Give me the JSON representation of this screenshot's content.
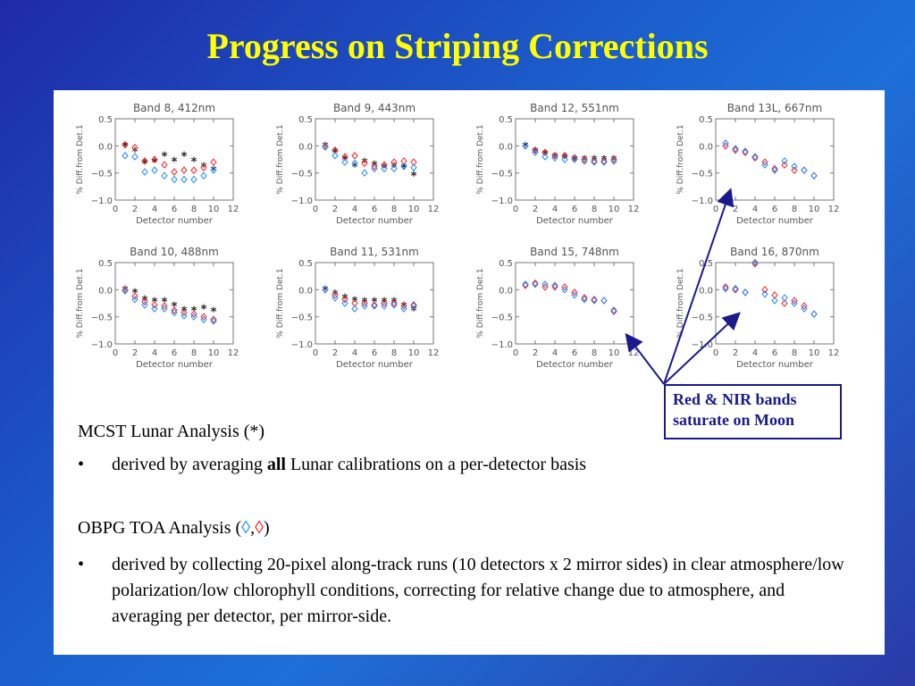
{
  "slide": {
    "title": "Progress on Striping Corrections",
    "callout_line1": "Red & NIR bands",
    "callout_line2": "saturate on Moon",
    "mcst_heading_prefix": "MCST Lunar Analysis (",
    "mcst_heading_symbol": "*",
    "mcst_heading_suffix": ")",
    "bullet_char": "•",
    "bullet1_prefix": "derived by averaging ",
    "bullet1_bold": "all",
    "bullet1_suffix": " Lunar calibrations on a per-detector basis",
    "obpg_heading_prefix": "OBPG TOA Analysis (",
    "obpg_blue_symbol": "◊",
    "obpg_separator": ",",
    "obpg_red_symbol": "◊",
    "obpg_heading_suffix": ")",
    "bullet2_text": "derived by collecting 20-pixel along-track runs (10 detectors x 2 mirror sides) in clear atmosphere/low polarization/low chlorophyll conditions, correcting for relative change due to atmosphere, and averaging per detector, per mirror-side."
  },
  "colors": {
    "title": "#ffff00",
    "blue_marker": "#1b8cff",
    "red_marker": "#ff2020",
    "star_marker": "#222222",
    "arrow": "#1a1a8c"
  },
  "chart_data": [
    {
      "type": "scatter",
      "title": "Band 8, 412nm",
      "xlabel": "Detector number",
      "ylabel": "% Diff.from Det.1",
      "xlim": [
        0,
        12
      ],
      "ylim": [
        -1.0,
        0.5
      ],
      "xticks": [
        "0",
        "2",
        "4",
        "6",
        "8",
        "10",
        "12"
      ],
      "yticks": [
        "0.5",
        "0.0",
        "−0.5",
        "−1.0"
      ],
      "series": [
        {
          "marker": "star",
          "x": [
            1,
            2,
            3,
            4,
            5,
            6,
            7,
            8,
            9,
            10
          ],
          "y": [
            0.0,
            -0.1,
            -0.32,
            -0.3,
            -0.18,
            -0.28,
            -0.18,
            -0.28,
            -0.38,
            -0.45
          ]
        },
        {
          "marker": "diamond-red",
          "x": [
            1,
            2,
            3,
            4,
            5,
            6,
            7,
            8,
            9,
            10
          ],
          "y": [
            0.02,
            -0.03,
            -0.28,
            -0.25,
            -0.35,
            -0.48,
            -0.45,
            -0.45,
            -0.4,
            -0.3
          ]
        },
        {
          "marker": "diamond-blue",
          "x": [
            1,
            2,
            3,
            4,
            5,
            6,
            7,
            8,
            9,
            10
          ],
          "y": [
            -0.18,
            -0.2,
            -0.48,
            -0.45,
            -0.55,
            -0.62,
            -0.62,
            -0.62,
            -0.55,
            -0.45
          ]
        }
      ]
    },
    {
      "type": "scatter",
      "title": "Band 9, 443nm",
      "xlabel": "Detector number",
      "ylabel": "% Diff.from Det.1",
      "xlim": [
        0,
        12
      ],
      "ylim": [
        -1.0,
        0.5
      ],
      "xticks": [
        "0",
        "2",
        "4",
        "6",
        "8",
        "10",
        "12"
      ],
      "yticks": [
        "0.5",
        "0.0",
        "−0.5",
        "−1.0"
      ],
      "series": [
        {
          "marker": "star",
          "x": [
            1,
            2,
            3,
            4,
            5,
            6,
            7,
            8,
            9,
            10
          ],
          "y": [
            0.0,
            -0.12,
            -0.25,
            -0.38,
            -0.3,
            -0.35,
            -0.4,
            -0.38,
            -0.4,
            -0.55
          ]
        },
        {
          "marker": "diamond-red",
          "x": [
            1,
            2,
            3,
            4,
            5,
            6,
            7,
            8,
            9,
            10
          ],
          "y": [
            0.0,
            -0.08,
            -0.2,
            -0.18,
            -0.32,
            -0.38,
            -0.35,
            -0.3,
            -0.28,
            -0.3
          ]
        },
        {
          "marker": "diamond-blue",
          "x": [
            1,
            2,
            3,
            4,
            5,
            6,
            7,
            8,
            9,
            10
          ],
          "y": [
            -0.02,
            -0.18,
            -0.3,
            -0.32,
            -0.5,
            -0.42,
            -0.42,
            -0.42,
            -0.38,
            -0.4
          ]
        }
      ]
    },
    {
      "type": "scatter",
      "title": "Band 12, 551nm",
      "xlabel": "Detector number",
      "ylabel": "% Diff.from Det.1",
      "xlim": [
        0,
        12
      ],
      "ylim": [
        -1.0,
        0.5
      ],
      "xticks": [
        "0",
        "2",
        "4",
        "6",
        "8",
        "10",
        "12"
      ],
      "yticks": [
        "0.5",
        "0.0",
        "−0.5",
        "−1.0"
      ],
      "series": [
        {
          "marker": "star",
          "x": [
            1,
            2,
            3,
            4,
            5,
            6,
            7,
            8,
            9,
            10
          ],
          "y": [
            0.0,
            -0.1,
            -0.15,
            -0.2,
            -0.22,
            -0.25,
            -0.25,
            -0.25,
            -0.25,
            -0.25
          ]
        },
        {
          "marker": "diamond-red",
          "x": [
            1,
            2,
            3,
            4,
            5,
            6,
            7,
            8,
            9,
            10
          ],
          "y": [
            0.0,
            -0.08,
            -0.12,
            -0.18,
            -0.18,
            -0.22,
            -0.25,
            -0.28,
            -0.28,
            -0.25
          ]
        },
        {
          "marker": "diamond-blue",
          "x": [
            1,
            2,
            3,
            4,
            5,
            6,
            7,
            8,
            9,
            10
          ],
          "y": [
            0.0,
            -0.12,
            -0.2,
            -0.22,
            -0.25,
            -0.25,
            -0.28,
            -0.3,
            -0.3,
            -0.28
          ]
        }
      ]
    },
    {
      "type": "scatter",
      "title": "Band 13L, 667nm",
      "xlabel": "Detector number",
      "ylabel": "% Diff.from Det.1",
      "xlim": [
        0,
        12
      ],
      "ylim": [
        -1.0,
        0.5
      ],
      "xticks": [
        "0",
        "2",
        "4",
        "6",
        "8",
        "10",
        "12"
      ],
      "yticks": [
        "0.5",
        "0.0",
        "−0.5",
        "−1.0"
      ],
      "series": [
        {
          "marker": "diamond-red",
          "x": [
            1,
            2,
            3,
            4,
            5,
            6,
            7,
            8,
            9,
            10
          ],
          "y": [
            0.0,
            -0.08,
            -0.12,
            -0.22,
            -0.3,
            -0.42,
            -0.35,
            -0.45,
            -0.45,
            -0.55
          ]
        },
        {
          "marker": "diamond-blue",
          "x": [
            1,
            2,
            3,
            4,
            5,
            6,
            7,
            8,
            9,
            10
          ],
          "y": [
            0.05,
            -0.05,
            -0.1,
            -0.2,
            -0.35,
            -0.45,
            -0.28,
            -0.38,
            -0.45,
            -0.55
          ]
        }
      ]
    },
    {
      "type": "scatter",
      "title": "Band 10, 488nm",
      "xlabel": "Detector number",
      "ylabel": "% Diff.from Det.1",
      "xlim": [
        0,
        12
      ],
      "ylim": [
        -1.0,
        0.5
      ],
      "xticks": [
        "0",
        "2",
        "4",
        "6",
        "8",
        "10",
        "12"
      ],
      "yticks": [
        "0.5",
        "0.0",
        "−0.5",
        "−1.0"
      ],
      "series": [
        {
          "marker": "star",
          "x": [
            1,
            2,
            3,
            4,
            5,
            6,
            7,
            8,
            9,
            10
          ],
          "y": [
            0.0,
            -0.05,
            -0.18,
            -0.22,
            -0.22,
            -0.3,
            -0.38,
            -0.38,
            -0.35,
            -0.4
          ]
        },
        {
          "marker": "diamond-red",
          "x": [
            1,
            2,
            3,
            4,
            5,
            6,
            7,
            8,
            9,
            10
          ],
          "y": [
            0.0,
            -0.12,
            -0.22,
            -0.28,
            -0.3,
            -0.38,
            -0.42,
            -0.45,
            -0.5,
            -0.55
          ]
        },
        {
          "marker": "diamond-blue",
          "x": [
            1,
            2,
            3,
            4,
            5,
            6,
            7,
            8,
            9,
            10
          ],
          "y": [
            -0.02,
            -0.18,
            -0.28,
            -0.35,
            -0.35,
            -0.42,
            -0.48,
            -0.5,
            -0.55,
            -0.58
          ]
        }
      ]
    },
    {
      "type": "scatter",
      "title": "Band 11, 531nm",
      "xlabel": "Detector number",
      "ylabel": "% Diff.from Det.1",
      "xlim": [
        0,
        12
      ],
      "ylim": [
        -1.0,
        0.5
      ],
      "xticks": [
        "0",
        "2",
        "4",
        "6",
        "8",
        "10",
        "12"
      ],
      "yticks": [
        "0.5",
        "0.0",
        "−0.5",
        "−1.0"
      ],
      "series": [
        {
          "marker": "star",
          "x": [
            1,
            2,
            3,
            4,
            5,
            6,
            7,
            8,
            9,
            10
          ],
          "y": [
            0.0,
            -0.08,
            -0.15,
            -0.2,
            -0.22,
            -0.22,
            -0.22,
            -0.22,
            -0.3,
            -0.38
          ]
        },
        {
          "marker": "diamond-red",
          "x": [
            1,
            2,
            3,
            4,
            5,
            6,
            7,
            8,
            9,
            10
          ],
          "y": [
            0.0,
            -0.1,
            -0.18,
            -0.25,
            -0.25,
            -0.28,
            -0.25,
            -0.25,
            -0.3,
            -0.28
          ]
        },
        {
          "marker": "diamond-blue",
          "x": [
            1,
            2,
            3,
            4,
            5,
            6,
            7,
            8,
            9,
            10
          ],
          "y": [
            0.0,
            -0.15,
            -0.25,
            -0.35,
            -0.3,
            -0.3,
            -0.3,
            -0.28,
            -0.35,
            -0.3
          ]
        }
      ]
    },
    {
      "type": "scatter",
      "title": "Band 15, 748nm",
      "xlabel": "Detector number",
      "ylabel": "% Diff.from Det.1",
      "xlim": [
        0,
        12
      ],
      "ylim": [
        -1.0,
        0.5
      ],
      "xticks": [
        "0",
        "2",
        "4",
        "6",
        "8",
        "10",
        "12"
      ],
      "yticks": [
        "0.5",
        "0.0",
        "−0.5",
        "−1.0"
      ],
      "series": [
        {
          "marker": "diamond-red",
          "x": [
            1,
            2,
            3,
            4,
            5,
            6,
            7,
            8,
            9,
            10
          ],
          "y": [
            0.08,
            0.12,
            0.05,
            0.05,
            0.05,
            -0.05,
            -0.15,
            -0.18,
            -0.2,
            -0.4
          ]
        },
        {
          "marker": "diamond-blue",
          "x": [
            1,
            2,
            3,
            4,
            5,
            6,
            7,
            8,
            9,
            10
          ],
          "y": [
            0.1,
            0.1,
            0.1,
            0.08,
            0.0,
            -0.1,
            -0.18,
            -0.2,
            -0.2,
            -0.38
          ]
        }
      ]
    },
    {
      "type": "scatter",
      "title": "Band 16, 870nm",
      "xlabel": "Detector number",
      "ylabel": "% Diff.from Det.1",
      "xlim": [
        0,
        12
      ],
      "ylim": [
        -1.0,
        0.5
      ],
      "xticks": [
        "0",
        "2",
        "4",
        "6",
        "8",
        "10",
        "12"
      ],
      "yticks": [
        "0.5",
        "0.0",
        "−0.5",
        "−1.0"
      ],
      "series": [
        {
          "marker": "diamond-red",
          "x": [
            1,
            2,
            3,
            4,
            5,
            6,
            7,
            8,
            9,
            10
          ],
          "y": [
            0.05,
            0.0,
            -0.05,
            0.48,
            0.0,
            -0.1,
            -0.25,
            -0.2,
            -0.3,
            -0.45
          ]
        },
        {
          "marker": "diamond-blue",
          "x": [
            1,
            2,
            3,
            4,
            5,
            6,
            7,
            8,
            9,
            10
          ],
          "y": [
            0.02,
            0.02,
            -0.05,
            0.5,
            -0.08,
            -0.2,
            -0.15,
            -0.25,
            -0.35,
            -0.45
          ]
        }
      ]
    }
  ]
}
